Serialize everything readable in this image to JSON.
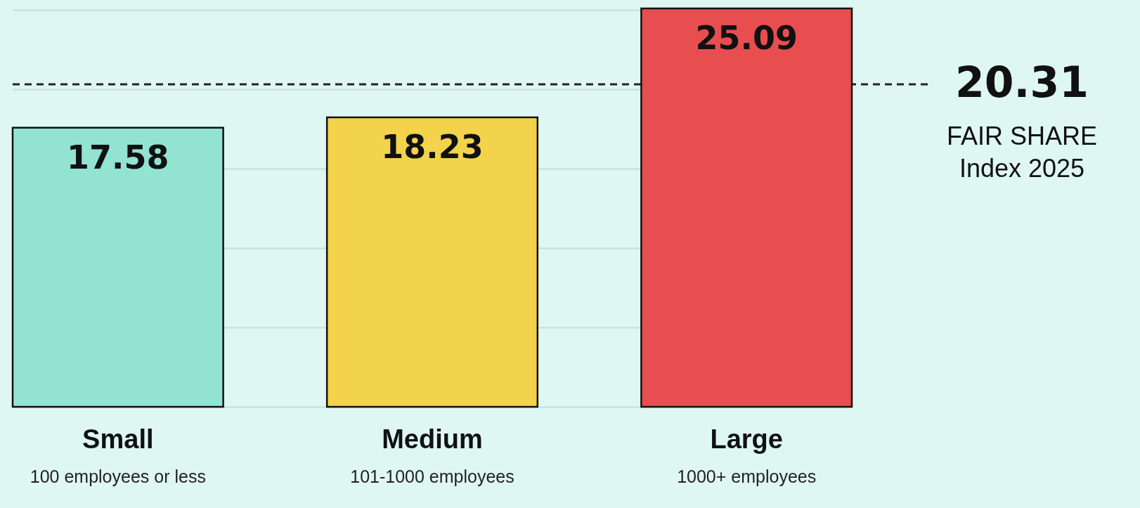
{
  "chart_data": {
    "type": "bar",
    "categories": [
      "Small",
      "Medium",
      "Large"
    ],
    "values": [
      17.58,
      18.23,
      25.09
    ],
    "colors": [
      "#93e3d3",
      "#f3d24c",
      "#e84e50"
    ],
    "data_labels": true,
    "yticks": [
      {
        "value": 0,
        "label": null
      },
      {
        "value": 5,
        "label": null
      },
      {
        "value": 10,
        "label": null
      },
      {
        "value": 15,
        "label": null
      },
      {
        "value": 20,
        "label": null
      },
      {
        "value": 25,
        "label": null
      }
    ],
    "grid": "y",
    "tick_labels": "x",
    "ref_lines": [
      {
        "axis": "y",
        "value": 20.31,
        "label": "20.31 FAIR SHARE Index 2025",
        "line_style": "dashed",
        "color": "#222222"
      }
    ],
    "annotations": [
      "100 employees or less",
      "101-1000 employees",
      "1000+ employees"
    ]
  }
}
